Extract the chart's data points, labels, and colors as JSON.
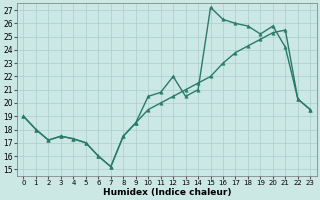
{
  "xlabel": "Humidex (Indice chaleur)",
  "xlim": [
    -0.5,
    23.5
  ],
  "ylim": [
    14.5,
    27.5
  ],
  "xticks": [
    0,
    1,
    2,
    3,
    4,
    5,
    6,
    7,
    8,
    9,
    10,
    11,
    12,
    13,
    14,
    15,
    16,
    17,
    18,
    19,
    20,
    21,
    22,
    23
  ],
  "yticks": [
    15,
    16,
    17,
    18,
    19,
    20,
    21,
    22,
    23,
    24,
    25,
    26,
    27
  ],
  "line1_x": [
    0,
    1,
    2,
    3,
    4,
    5,
    6,
    7,
    8,
    9,
    10,
    11,
    12,
    13,
    14,
    15,
    16,
    17,
    18,
    19,
    20,
    21,
    22,
    23
  ],
  "line1_y": [
    19,
    18,
    17.2,
    17.5,
    17.3,
    17.0,
    16.0,
    15.2,
    17.5,
    18.5,
    20.5,
    20.8,
    22.0,
    20.5,
    21.0,
    27.2,
    26.3,
    26.0,
    25.8,
    25.2,
    25.8,
    24.2,
    20.3,
    19.5
  ],
  "line2_x": [
    0,
    1,
    2,
    3,
    4,
    5,
    6,
    7,
    8,
    9,
    10,
    11,
    12,
    13,
    14,
    15,
    16,
    17,
    18,
    19,
    20,
    21,
    22,
    23
  ],
  "line2_y": [
    19.0,
    18.0,
    17.2,
    17.5,
    17.3,
    17.0,
    16.0,
    15.2,
    17.5,
    18.5,
    19.5,
    20.0,
    20.5,
    21.0,
    21.5,
    22.0,
    23.0,
    23.8,
    24.3,
    24.8,
    25.3,
    25.5,
    20.3,
    19.5
  ],
  "line_color": "#2a7a6a",
  "bg_color": "#cce8e4",
  "grid_color": "#aacfcb",
  "marker": "^",
  "marker_size": 2.5,
  "linewidth": 1.0
}
